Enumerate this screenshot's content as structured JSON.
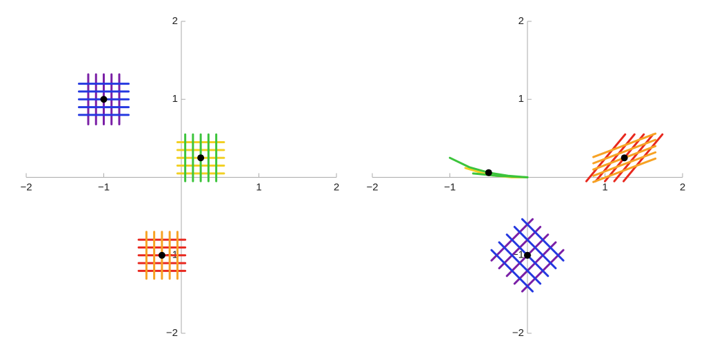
{
  "chart_data": [
    {
      "type": "grid-map",
      "xlim": [
        -2,
        2
      ],
      "ylim": [
        -2,
        2
      ],
      "xticks": [
        {
          "value": -2,
          "label": "−2"
        },
        {
          "value": -1,
          "label": "−1"
        },
        1,
        2
      ],
      "yticks": [
        {
          "value": -2,
          "label": "−2"
        },
        {
          "value": -1,
          "label": "−1"
        },
        1,
        2
      ],
      "points": {
        "x": [
          -1,
          0.25,
          -0.25
        ],
        "y": [
          1,
          0.25,
          -1
        ]
      },
      "curves": [
        {
          "color": "#7a1fa6",
          "x": [
            -1.2,
            -1.2
          ],
          "y": [
            0.68,
            1.32
          ]
        },
        {
          "color": "#7a1fa6",
          "x": [
            -1.1,
            -1.1
          ],
          "y": [
            0.68,
            1.32
          ]
        },
        {
          "color": "#7a1fa6",
          "x": [
            -1.0,
            -1.0
          ],
          "y": [
            0.68,
            1.32
          ]
        },
        {
          "color": "#7a1fa6",
          "x": [
            -0.9,
            -0.9
          ],
          "y": [
            0.68,
            1.32
          ]
        },
        {
          "color": "#7a1fa6",
          "x": [
            -0.8,
            -0.8
          ],
          "y": [
            0.68,
            1.32
          ]
        },
        {
          "color": "#2438e0",
          "x": [
            -1.32,
            -0.68
          ],
          "y": [
            0.8,
            0.8
          ]
        },
        {
          "color": "#2438e0",
          "x": [
            -1.32,
            -0.68
          ],
          "y": [
            0.9,
            0.9
          ]
        },
        {
          "color": "#2438e0",
          "x": [
            -1.32,
            -0.68
          ],
          "y": [
            1.0,
            1.0
          ]
        },
        {
          "color": "#2438e0",
          "x": [
            -1.32,
            -0.68
          ],
          "y": [
            1.1,
            1.1
          ]
        },
        {
          "color": "#2438e0",
          "x": [
            -1.32,
            -0.68
          ],
          "y": [
            1.2,
            1.2
          ]
        },
        {
          "color": "#f2d024",
          "x": [
            -0.05,
            0.55
          ],
          "y": [
            0.05,
            0.05
          ]
        },
        {
          "color": "#f2d024",
          "x": [
            -0.05,
            0.55
          ],
          "y": [
            0.15,
            0.15
          ]
        },
        {
          "color": "#f2d024",
          "x": [
            -0.05,
            0.55
          ],
          "y": [
            0.25,
            0.25
          ]
        },
        {
          "color": "#f2d024",
          "x": [
            -0.05,
            0.55
          ],
          "y": [
            0.35,
            0.35
          ]
        },
        {
          "color": "#f2d024",
          "x": [
            -0.05,
            0.55
          ],
          "y": [
            0.45,
            0.45
          ]
        },
        {
          "color": "#3cc43c",
          "x": [
            0.05,
            0.05
          ],
          "y": [
            -0.05,
            0.55
          ]
        },
        {
          "color": "#3cc43c",
          "x": [
            0.15,
            0.15
          ],
          "y": [
            -0.05,
            0.55
          ]
        },
        {
          "color": "#3cc43c",
          "x": [
            0.25,
            0.25
          ],
          "y": [
            -0.05,
            0.55
          ]
        },
        {
          "color": "#3cc43c",
          "x": [
            0.35,
            0.35
          ],
          "y": [
            -0.05,
            0.55
          ]
        },
        {
          "color": "#3cc43c",
          "x": [
            0.45,
            0.45
          ],
          "y": [
            -0.05,
            0.55
          ]
        },
        {
          "color": "#e8281e",
          "x": [
            -0.55,
            0.05
          ],
          "y": [
            -0.8,
            -0.8
          ]
        },
        {
          "color": "#e8281e",
          "x": [
            -0.55,
            0.05
          ],
          "y": [
            -0.9,
            -0.9
          ]
        },
        {
          "color": "#e8281e",
          "x": [
            -0.55,
            0.05
          ],
          "y": [
            -1.0,
            -1.0
          ]
        },
        {
          "color": "#e8281e",
          "x": [
            -0.55,
            0.05
          ],
          "y": [
            -1.1,
            -1.1
          ]
        },
        {
          "color": "#e8281e",
          "x": [
            -0.55,
            0.05
          ],
          "y": [
            -1.2,
            -1.2
          ]
        },
        {
          "color": "#f7a224",
          "x": [
            -0.45,
            -0.45
          ],
          "y": [
            -1.3,
            -0.7
          ]
        },
        {
          "color": "#f7a224",
          "x": [
            -0.35,
            -0.35
          ],
          "y": [
            -1.3,
            -0.7
          ]
        },
        {
          "color": "#f7a224",
          "x": [
            -0.25,
            -0.25
          ],
          "y": [
            -1.3,
            -0.7
          ]
        },
        {
          "color": "#f7a224",
          "x": [
            -0.15,
            -0.15
          ],
          "y": [
            -1.3,
            -0.7
          ]
        },
        {
          "color": "#f7a224",
          "x": [
            -0.05,
            -0.05
          ],
          "y": [
            -1.3,
            -0.7
          ]
        }
      ]
    },
    {
      "type": "grid-map",
      "xlim": [
        -2,
        2
      ],
      "ylim": [
        -2,
        2
      ],
      "xticks": [
        {
          "value": -2,
          "label": "−2"
        },
        {
          "value": -1,
          "label": "−1"
        },
        1,
        2
      ],
      "yticks": [
        {
          "value": -2,
          "label": "−2"
        },
        {
          "value": -1,
          "label": "−1"
        },
        1,
        2
      ],
      "points": {
        "x": [
          0,
          -0.5,
          1.25
        ],
        "y": [
          -1,
          0.06,
          0.25
        ]
      },
      "curves": [
        {
          "color": "#7a1fa6",
          "x": [
            -0.463,
            0.067
          ],
          "y": [
            -1.067,
            -0.537
          ]
        },
        {
          "color": "#7a1fa6",
          "x": [
            -0.364,
            0.166
          ],
          "y": [
            -1.166,
            -0.636
          ]
        },
        {
          "color": "#7a1fa6",
          "x": [
            -0.265,
            0.265
          ],
          "y": [
            -1.265,
            -0.735
          ]
        },
        {
          "color": "#7a1fa6",
          "x": [
            -0.166,
            0.364
          ],
          "y": [
            -1.364,
            -0.834
          ]
        },
        {
          "color": "#7a1fa6",
          "x": [
            -0.067,
            0.463
          ],
          "y": [
            -1.463,
            -0.933
          ]
        },
        {
          "color": "#2438e0",
          "x": [
            -0.463,
            0.067
          ],
          "y": [
            -0.933,
            -1.463
          ]
        },
        {
          "color": "#2438e0",
          "x": [
            -0.364,
            0.166
          ],
          "y": [
            -0.834,
            -1.364
          ]
        },
        {
          "color": "#2438e0",
          "x": [
            -0.265,
            0.265
          ],
          "y": [
            -0.735,
            -1.265
          ]
        },
        {
          "color": "#2438e0",
          "x": [
            -0.166,
            0.364
          ],
          "y": [
            -0.636,
            -1.166
          ]
        },
        {
          "color": "#2438e0",
          "x": [
            -0.067,
            0.463
          ],
          "y": [
            -0.537,
            -1.067
          ]
        },
        {
          "color": "#f2d024",
          "x": [
            -0.8,
            -0.5,
            -0.2,
            0
          ],
          "y": [
            0.12,
            0.03,
            0.0,
            0
          ]
        },
        {
          "color": "#3cc43c",
          "x": [
            -1,
            -0.75,
            -0.5,
            -0.25,
            0
          ],
          "y": [
            0.25,
            0.13,
            0.06,
            0.02,
            0
          ]
        },
        {
          "color": "#3cc43c",
          "x": [
            -0.7,
            -0.4,
            0
          ],
          "y": [
            0.05,
            0.02,
            0
          ]
        },
        {
          "color": "#e8281e",
          "x": [
            0.76,
            1.26
          ],
          "y": [
            -0.05,
            0.55
          ]
        },
        {
          "color": "#e8281e",
          "x": [
            0.88,
            1.38
          ],
          "y": [
            -0.05,
            0.55
          ]
        },
        {
          "color": "#e8281e",
          "x": [
            1.0,
            1.5
          ],
          "y": [
            -0.05,
            0.55
          ]
        },
        {
          "color": "#e8281e",
          "x": [
            1.12,
            1.62
          ],
          "y": [
            -0.05,
            0.55
          ]
        },
        {
          "color": "#e8281e",
          "x": [
            1.24,
            1.74
          ],
          "y": [
            -0.05,
            0.55
          ]
        },
        {
          "color": "#f7a224",
          "x": [
            0.85,
            1.65
          ],
          "y": [
            -0.06,
            0.24
          ]
        },
        {
          "color": "#f7a224",
          "x": [
            0.85,
            1.65
          ],
          "y": [
            0.02,
            0.32
          ]
        },
        {
          "color": "#f7a224",
          "x": [
            0.85,
            1.65
          ],
          "y": [
            0.1,
            0.4
          ]
        },
        {
          "color": "#f7a224",
          "x": [
            0.85,
            1.65
          ],
          "y": [
            0.18,
            0.48
          ]
        },
        {
          "color": "#f7a224",
          "x": [
            0.85,
            1.65
          ],
          "y": [
            0.26,
            0.56
          ]
        }
      ]
    }
  ]
}
